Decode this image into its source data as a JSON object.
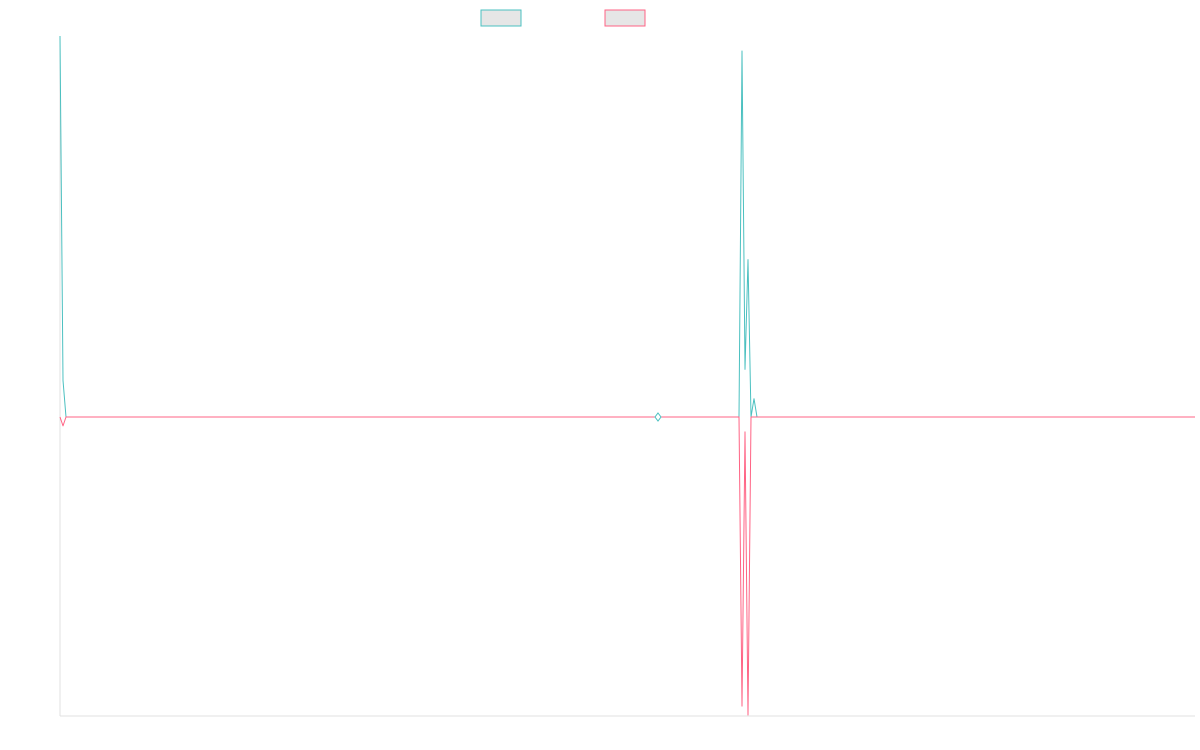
{
  "chart_data": {
    "type": "line",
    "title": "",
    "xlabel": "",
    "ylabel": "",
    "xlim": [
      0,
      284
    ],
    "ylim": [
      -1,
      1.05
    ],
    "grid": false,
    "legend": "top-center",
    "series": [
      {
        "name": "",
        "color": "#4bc0c0",
        "fill": "#e6e6e6",
        "points": [
          [
            0,
            1.1
          ],
          [
            1,
            0.1
          ],
          [
            2,
            0.0
          ],
          [
            3,
            0.0
          ],
          [
            4,
            0.0
          ],
          [
            150,
            0.0
          ],
          [
            170,
            0.0
          ],
          [
            171,
            1.0
          ],
          [
            172,
            0.13
          ],
          [
            173,
            0.43
          ],
          [
            174,
            0.0
          ],
          [
            175,
            0.05
          ],
          [
            176,
            0.0
          ],
          [
            177,
            0.0
          ],
          [
            284,
            0.0
          ]
        ]
      },
      {
        "name": "",
        "color": "#ff6384",
        "fill": "#e6e6e6",
        "points": [
          [
            0,
            0.0
          ],
          [
            1,
            -0.03
          ],
          [
            2,
            0.0
          ],
          [
            3,
            0.0
          ],
          [
            4,
            0.0
          ],
          [
            150,
            0.0
          ],
          [
            170,
            0.0
          ],
          [
            171,
            -0.97
          ],
          [
            172,
            -0.05
          ],
          [
            173,
            -1.0
          ],
          [
            174,
            0.0
          ],
          [
            175,
            0.0
          ],
          [
            176,
            0.0
          ],
          [
            177,
            0.0
          ],
          [
            284,
            0.0
          ]
        ]
      }
    ],
    "markers": [
      {
        "series": 0,
        "x": 150,
        "shape": "diamond"
      }
    ]
  }
}
